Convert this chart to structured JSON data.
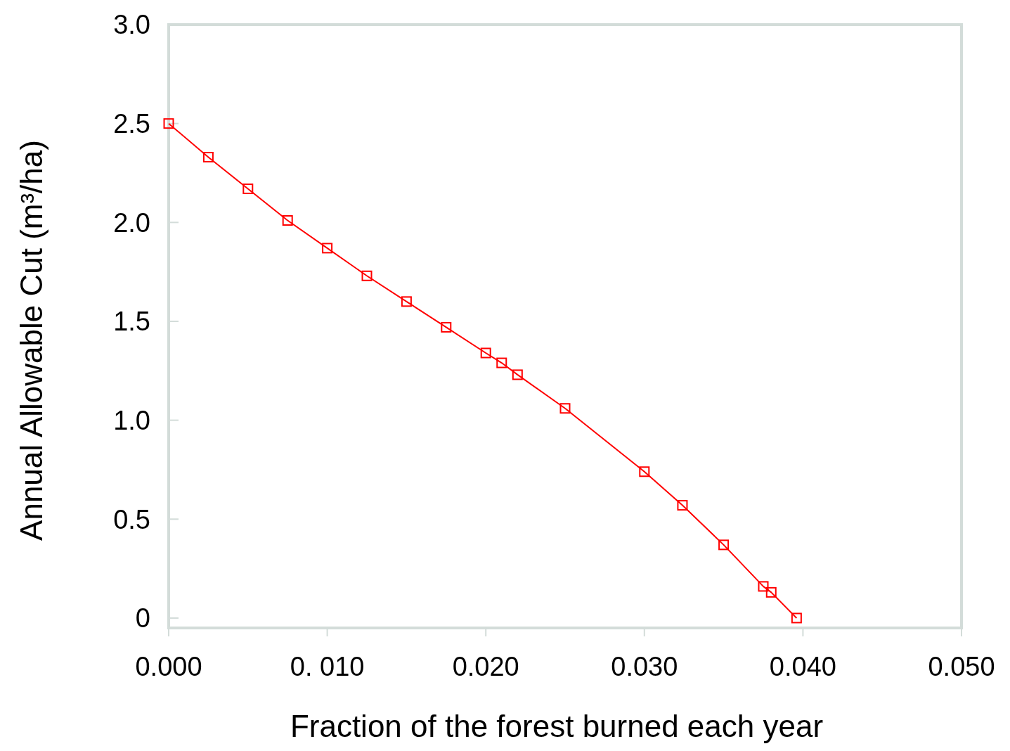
{
  "chart_data": {
    "type": "line",
    "xlabel": "Fraction of the forest burned each year",
    "ylabel": "Annual Allowable Cut  (m³/ha)",
    "x": [
      0,
      0.0025,
      0.005,
      0.0075,
      0.01,
      0.0125,
      0.015,
      0.0175,
      0.02,
      0.021,
      0.022,
      0.025,
      0.03,
      0.0324,
      0.035,
      0.0375,
      0.038,
      0.0396
    ],
    "series": [
      {
        "color": "#ff0000",
        "values": [
          2.5,
          2.33,
          2.17,
          2.01,
          1.87,
          1.73,
          1.6,
          1.47,
          1.34,
          1.29,
          1.23,
          1.06,
          0.74,
          0.57,
          0.37,
          0.16,
          0.13,
          0.0
        ]
      }
    ],
    "xlim": [
      0,
      0.05
    ],
    "xticks": [
      {
        "value": 0,
        "label": "0.000"
      },
      {
        "value": 0.01,
        "label": "0. 010"
      },
      {
        "value": 0.02,
        "label": "0.020"
      },
      {
        "value": 0.03,
        "label": "0.030"
      },
      {
        "value": 0.04,
        "label": "0.040"
      },
      {
        "value": 0.05,
        "label": "0.050"
      }
    ],
    "ylim": [
      -0.05,
      3
    ],
    "yticks": [
      0,
      0.5,
      {
        "value": 1,
        "label": "1.0"
      },
      1.5,
      {
        "value": 2,
        "label": "2.0"
      },
      2.5,
      {
        "value": 3,
        "label": "3.0"
      }
    ],
    "marker": "square",
    "grid": false
  }
}
